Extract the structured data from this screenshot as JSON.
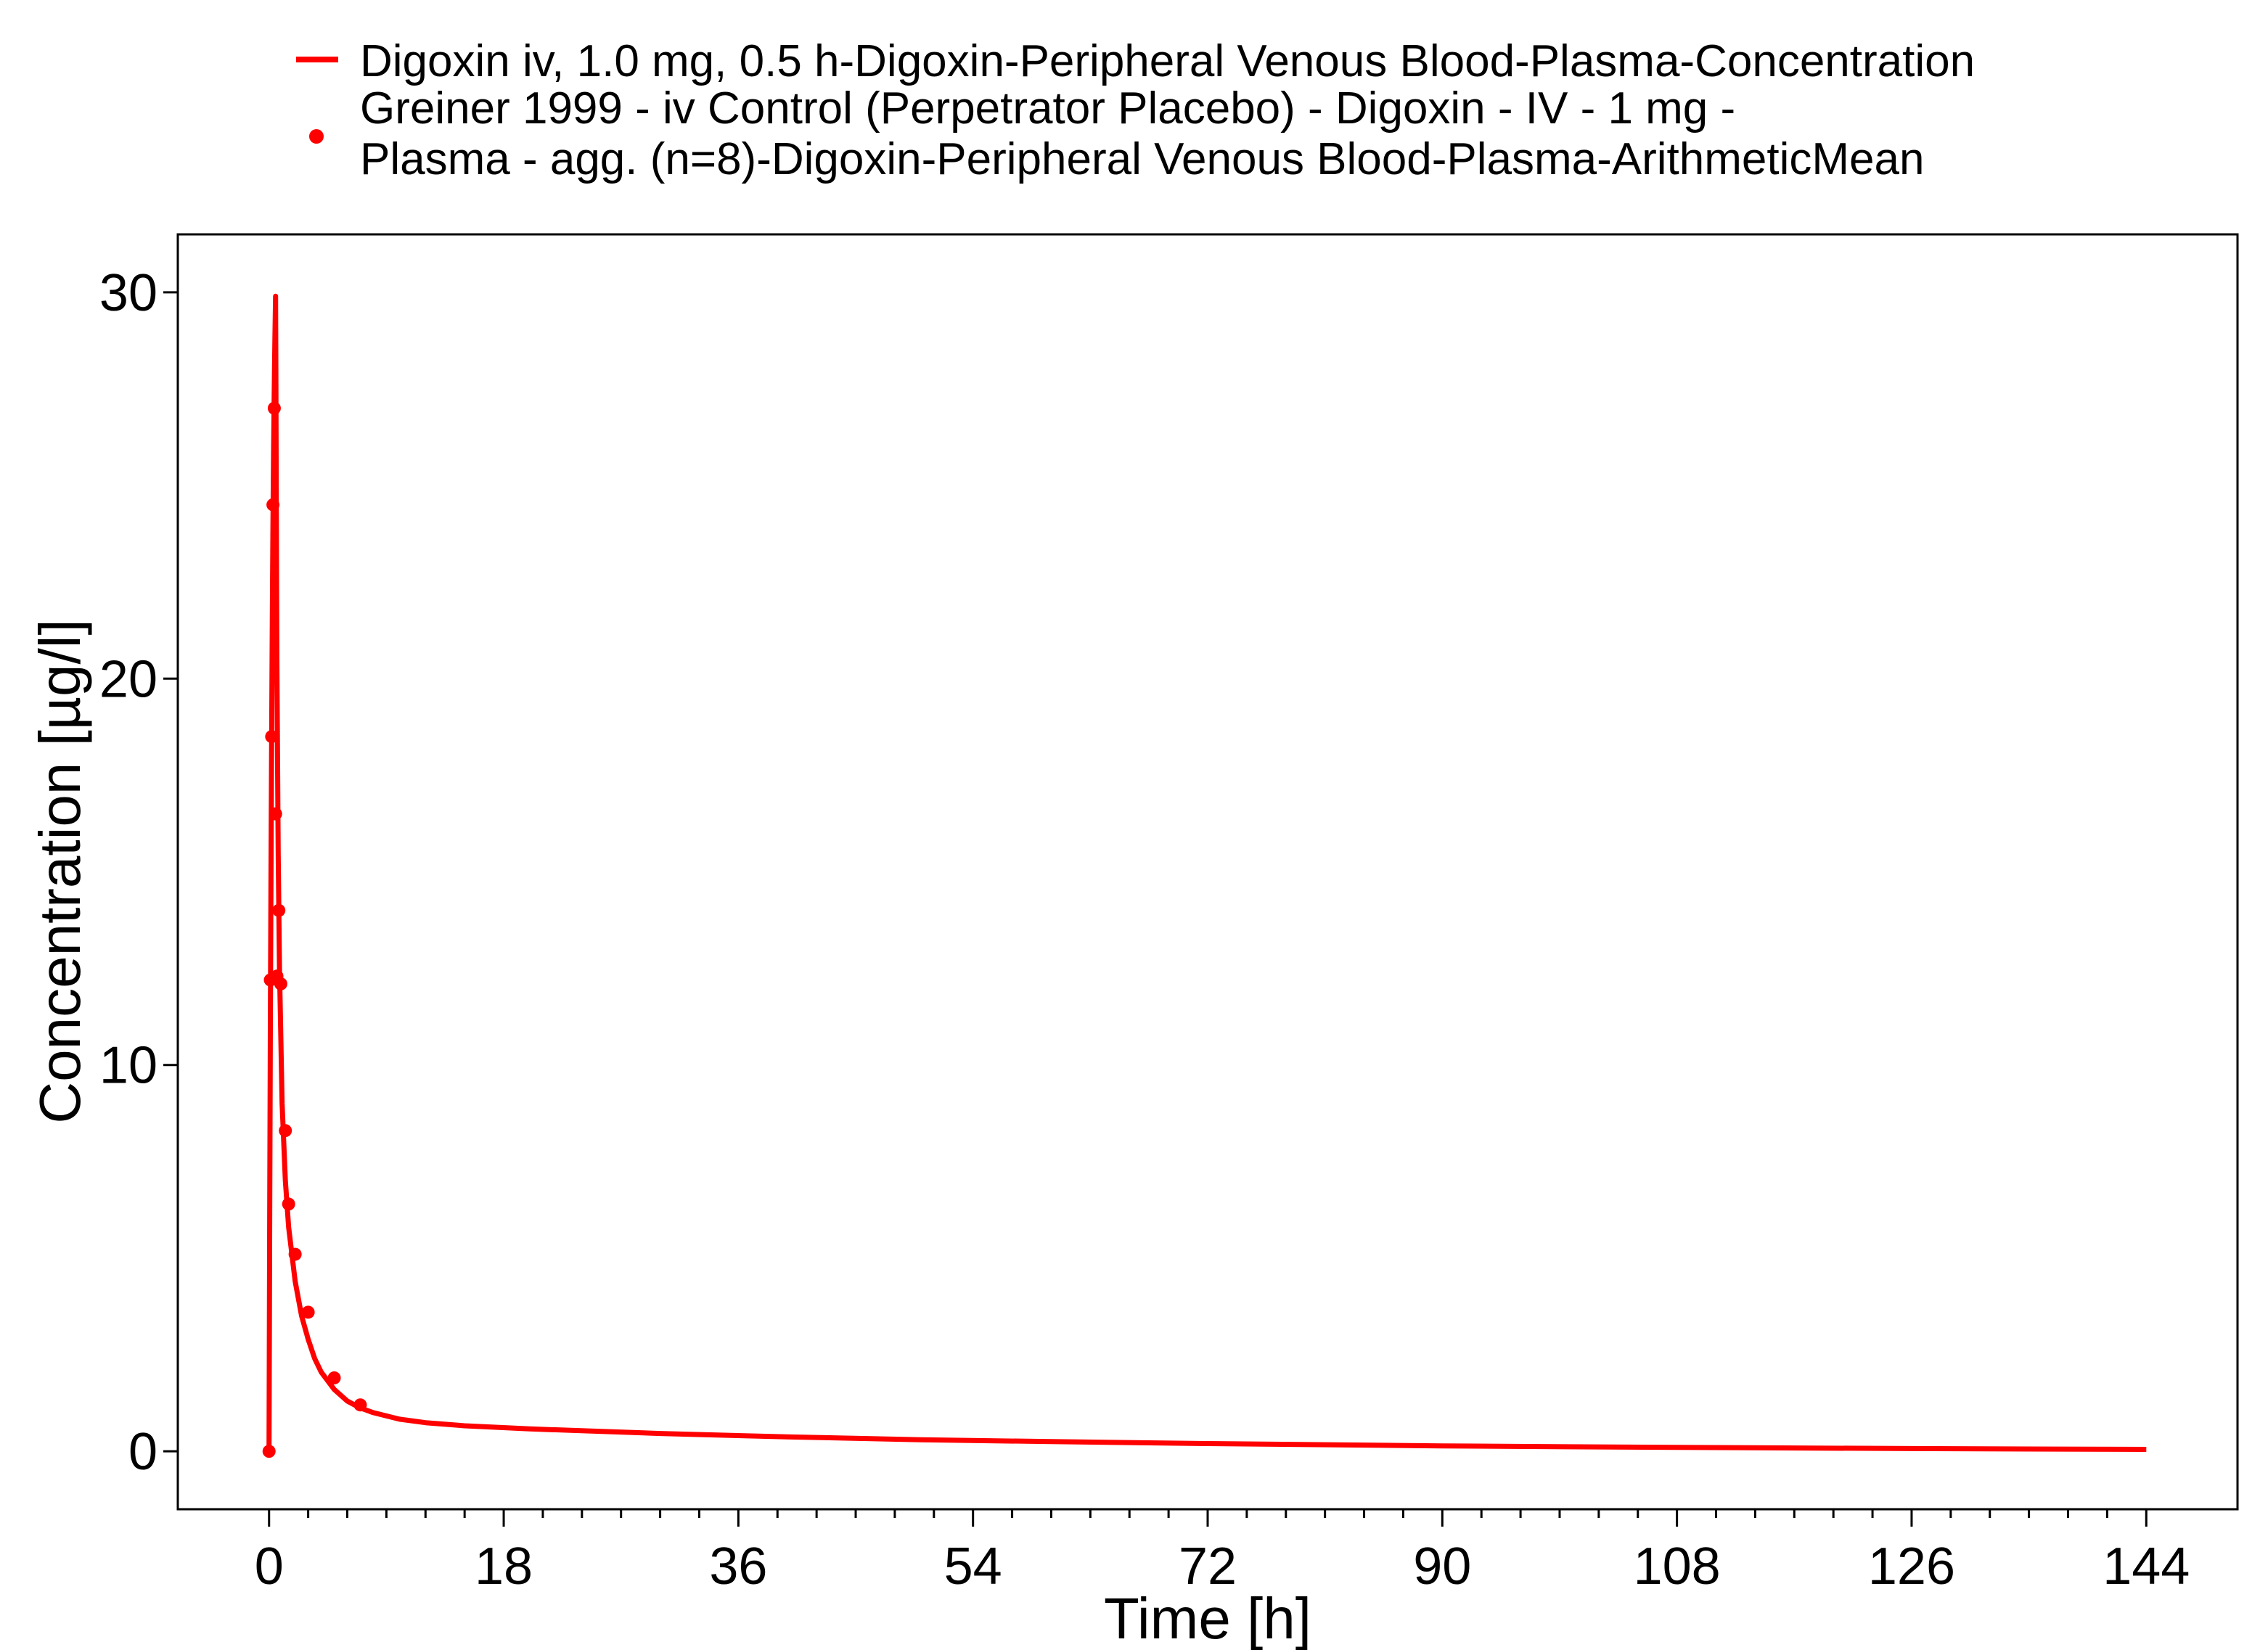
{
  "colors": {
    "series": "#ff0000",
    "axis": "#000000",
    "background": "#ffffff"
  },
  "legend": {
    "placement": "top",
    "items": [
      {
        "marker": "line",
        "lines": [
          "Digoxin iv, 1.0 mg, 0.5 h-Digoxin-Peripheral Venous Blood-Plasma-Concentration"
        ]
      },
      {
        "marker": "point",
        "lines": [
          "Greiner 1999 - iv Control (Perpetrator Placebo) - Digoxin - IV - 1 mg -",
          "Plasma - agg. (n=8)-Digoxin-Peripheral Venous Blood-Plasma-ArithmeticMean"
        ]
      }
    ]
  },
  "chart_data": {
    "type": "line",
    "title": "",
    "xlabel": "Time [h]",
    "ylabel": "Concentration [µg/l]",
    "xlim": [
      -7,
      151
    ],
    "ylim": [
      -1.5,
      31.5
    ],
    "grid": false,
    "x_ticks": [
      0,
      18,
      36,
      54,
      72,
      90,
      108,
      126,
      144
    ],
    "x_minor_step": 3,
    "y_ticks": [
      0,
      10,
      20,
      30
    ],
    "series": [
      {
        "name": "Digoxin iv, 1.0 mg, 0.5 h-Digoxin-Peripheral Venous Blood-Plasma-Concentration",
        "kind": "line",
        "x": [
          0,
          0.05,
          0.1,
          0.15,
          0.2,
          0.25,
          0.3,
          0.35,
          0.4,
          0.45,
          0.5,
          0.52,
          0.55,
          0.6,
          0.7,
          0.8,
          1.0,
          1.25,
          1.5,
          2.0,
          2.5,
          3.0,
          3.5,
          4.0,
          5.0,
          6.0,
          7.0,
          8.0,
          10.0,
          12.0,
          15.0,
          20.0,
          30.0,
          40.0,
          50.0,
          60.0,
          72.0,
          90.0,
          108.0,
          126.0,
          144.0
        ],
        "y": [
          0,
          6.0,
          11.0,
          15.0,
          18.5,
          21.5,
          24.0,
          26.0,
          27.5,
          28.8,
          29.9,
          28.0,
          25.0,
          20.5,
          15.5,
          12.5,
          9.0,
          7.0,
          5.8,
          4.4,
          3.5,
          2.9,
          2.4,
          2.05,
          1.6,
          1.3,
          1.12,
          1.0,
          0.83,
          0.74,
          0.66,
          0.58,
          0.46,
          0.37,
          0.3,
          0.25,
          0.2,
          0.14,
          0.1,
          0.07,
          0.05
        ]
      },
      {
        "name": "Greiner 1999 - iv Control (Perpetrator Placebo) - Digoxin - IV - 1 mg - Plasma - agg. (n=8)-Digoxin-Peripheral Venous Blood-Plasma-ArithmeticMean",
        "kind": "scatter",
        "x": [
          0,
          0.1,
          0.2,
          0.3,
          0.4,
          0.5,
          0.6,
          0.75,
          0.9,
          1.25,
          1.5,
          2.0,
          3.0,
          5.0,
          7.0
        ],
        "y": [
          0,
          12.2,
          18.5,
          24.5,
          27.0,
          16.5,
          12.3,
          14.0,
          12.1,
          8.3,
          6.4,
          5.1,
          3.6,
          1.9,
          1.2
        ]
      }
    ]
  }
}
